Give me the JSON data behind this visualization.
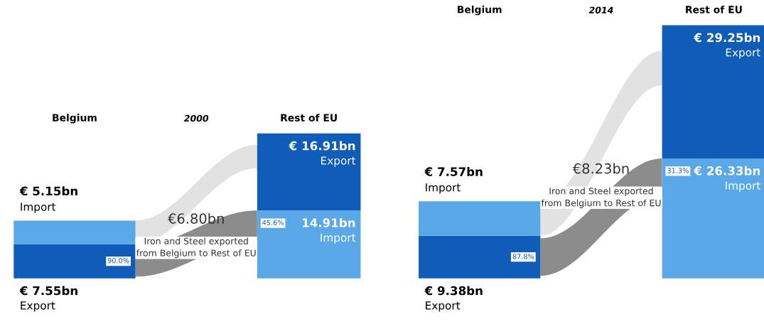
{
  "chart_data": [
    {
      "type": "other",
      "title": "2000",
      "categories": [
        "Belgium",
        "Rest of EU"
      ],
      "series": [
        {
          "name": "Import",
          "color": "#5ba8e8",
          "values": [
            5.15,
            14.91
          ],
          "value_labels": [
            "€ 5.15bn",
            "14.91bn"
          ]
        },
        {
          "name": "Export",
          "color": "#0f5db8",
          "values": [
            7.55,
            16.91
          ],
          "value_labels": [
            "€ 7.55bn",
            "€ 16.91bn"
          ]
        },
        {
          "color": "#8c8c8c",
          "values": [
            6.8,
            null
          ],
          "value_labels": [
            "€6.80bn",
            null
          ]
        }
      ],
      "annotations": [
        "Iron and Steel exported\nfrom Belgium to Rest of EU",
        "90.0%",
        "45.6%"
      ]
    },
    {
      "type": "other",
      "title": "2014",
      "categories": [
        "Belgium",
        "Rest of EU"
      ],
      "series": [
        {
          "name": "Import",
          "color": "#5ba8e8",
          "values": [
            7.57,
            26.33
          ],
          "value_labels": [
            "€ 7.57bn",
            "€ 26.33bn"
          ]
        },
        {
          "name": "Export",
          "color": "#0f5db8",
          "values": [
            9.38,
            29.25
          ],
          "value_labels": [
            "€ 9.38bn",
            "€ 29.25bn"
          ]
        },
        {
          "color": "#8c8c8c",
          "values": [
            8.23,
            null
          ],
          "value_labels": [
            "€8.23bn",
            null
          ]
        }
      ],
      "annotations": [
        "Iron and Steel exported\nfrom Belgium to Rest of EU",
        "87.8%",
        "31.3%"
      ]
    }
  ]
}
